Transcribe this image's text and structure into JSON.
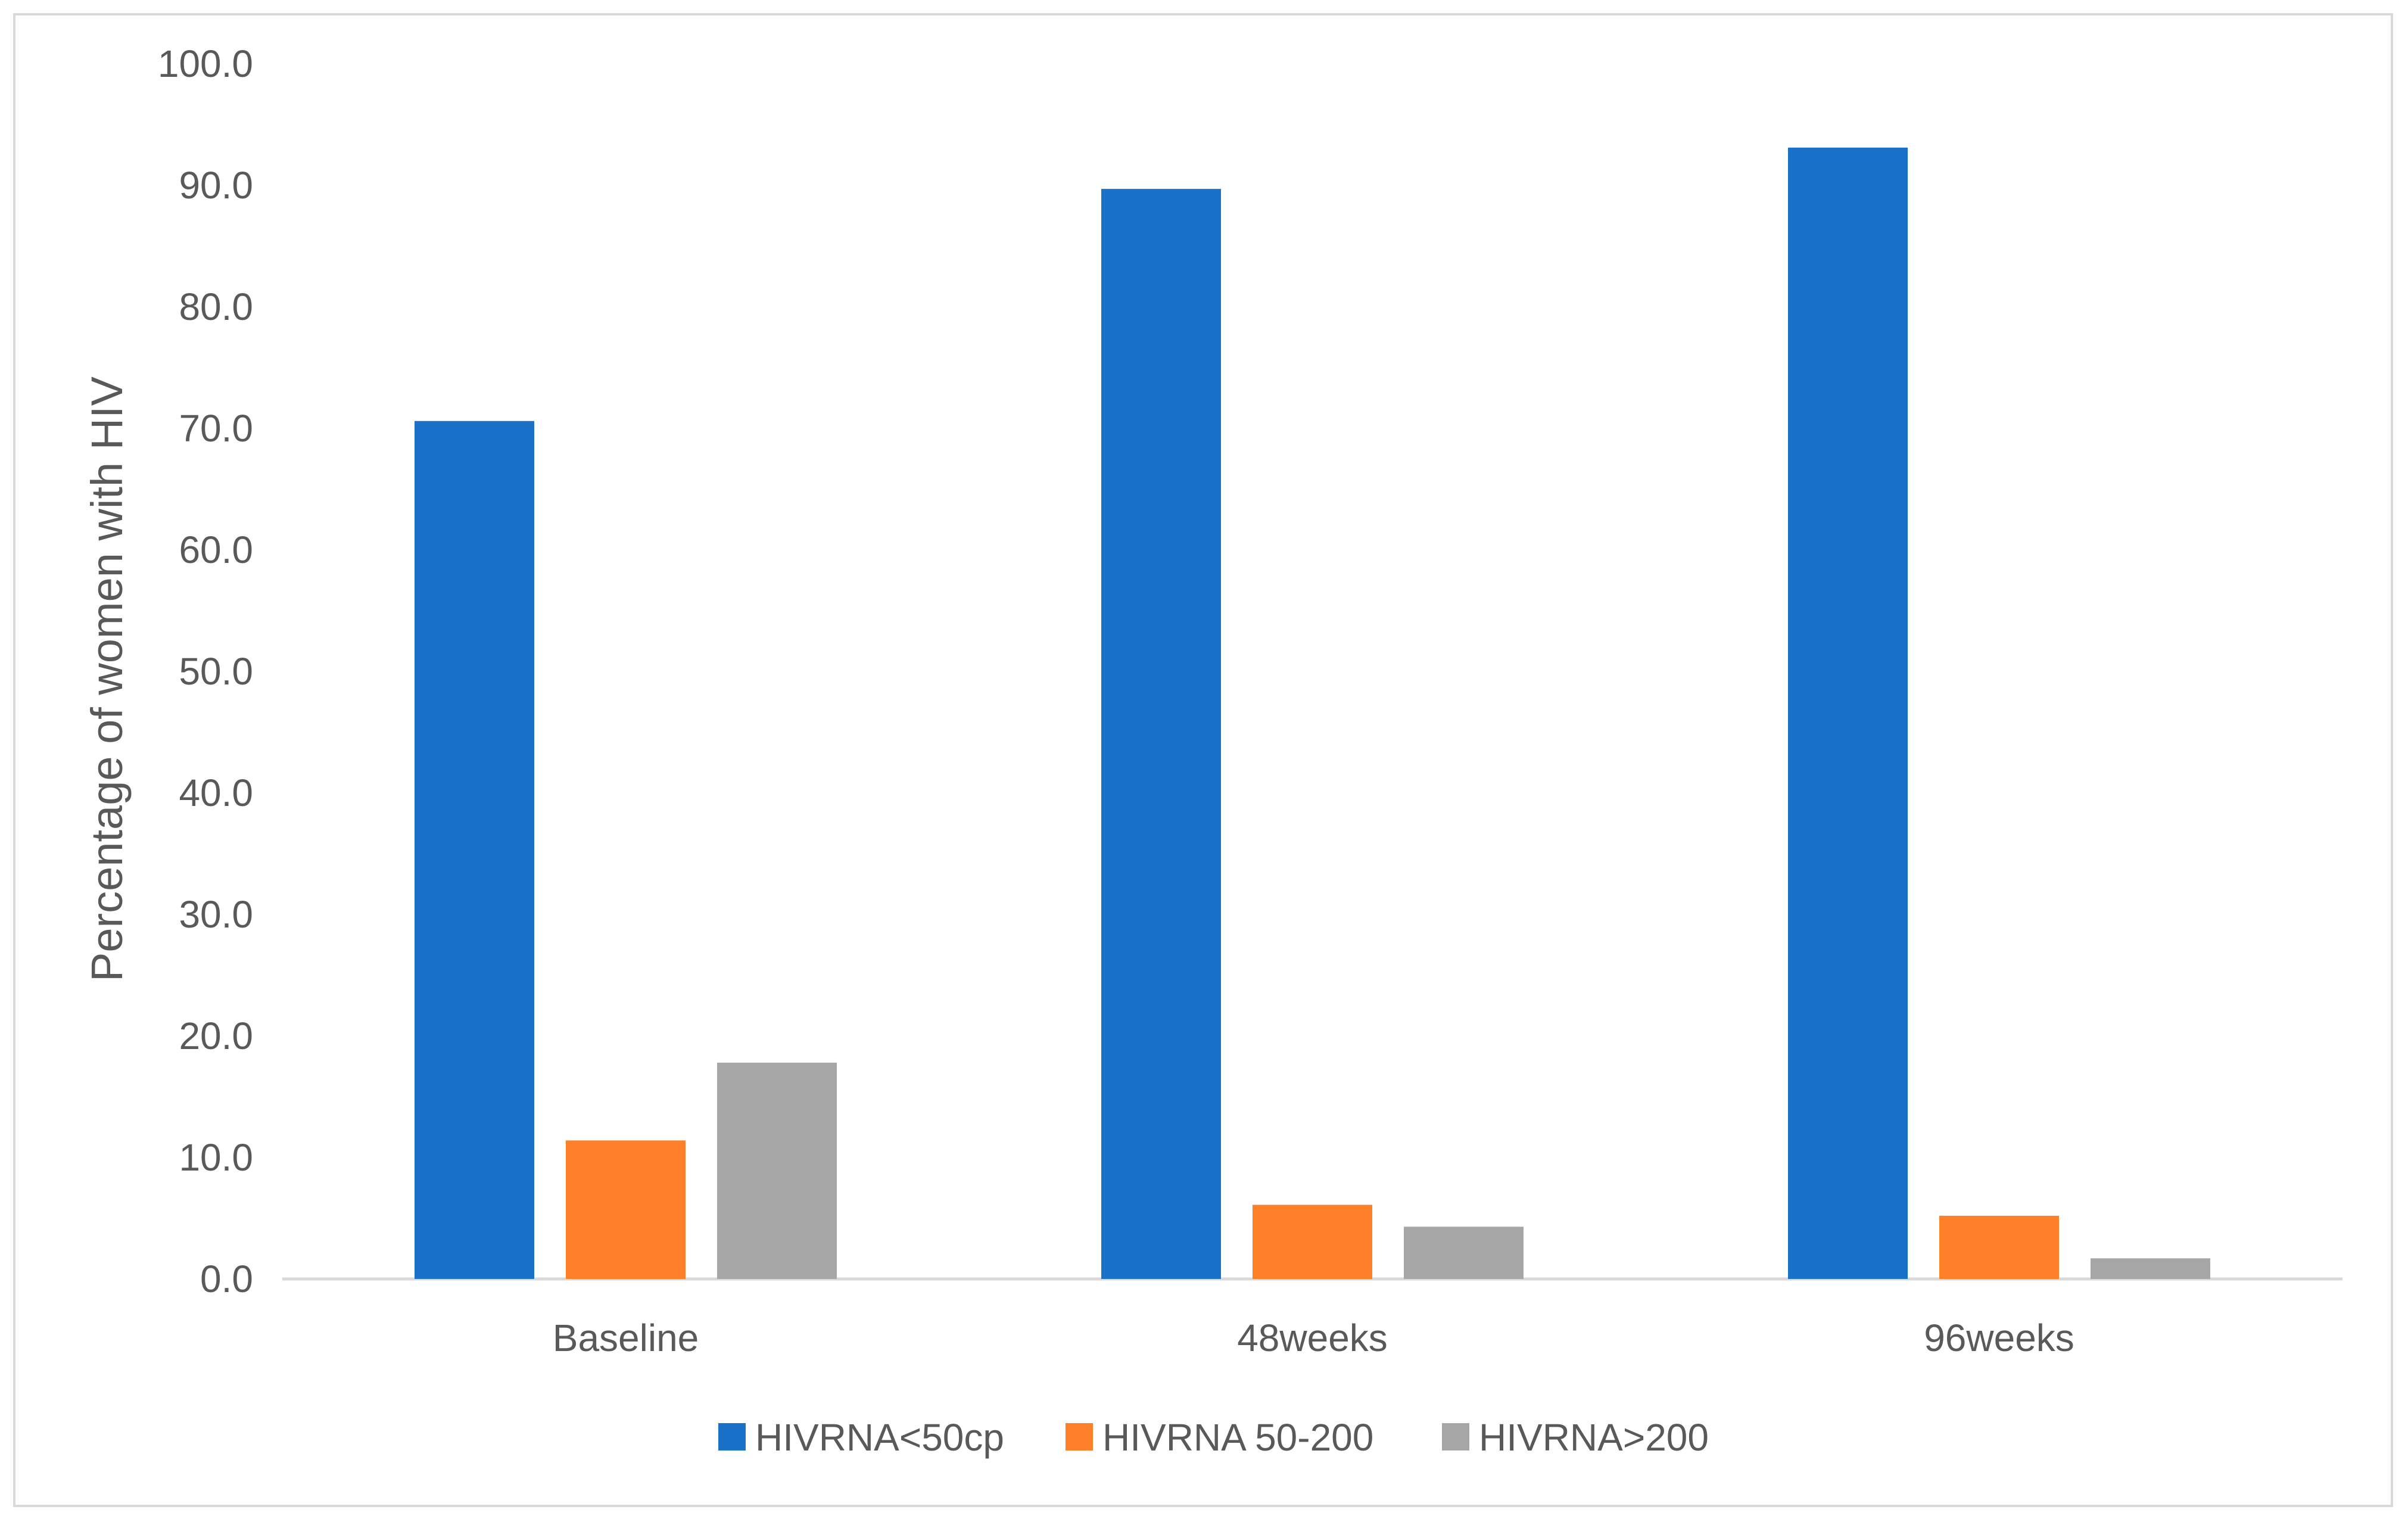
{
  "chart_data": {
    "type": "bar",
    "title": "",
    "xlabel": "",
    "ylabel": "Percentage of women with HIV",
    "ylim": [
      0,
      100
    ],
    "yticks": [
      "0.0",
      "10.0",
      "20.0",
      "30.0",
      "40.0",
      "50.0",
      "60.0",
      "70.0",
      "80.0",
      "90.0",
      "100.0"
    ],
    "categories": [
      "Baseline",
      "48weeks",
      "96weeks"
    ],
    "series": [
      {
        "name": "HIVRNA<50cp",
        "color": "#1a71c8",
        "values": [
          70.6,
          89.7,
          93.1
        ]
      },
      {
        "name": "HIVRNA 50-200",
        "color": "#fd7f28",
        "values": [
          11.4,
          6.1,
          5.2
        ]
      },
      {
        "name": "HIVRNA>200",
        "color": "#a6a6a6",
        "values": [
          17.8,
          4.3,
          1.7
        ]
      }
    ],
    "grid": false,
    "legend": "bottom"
  }
}
